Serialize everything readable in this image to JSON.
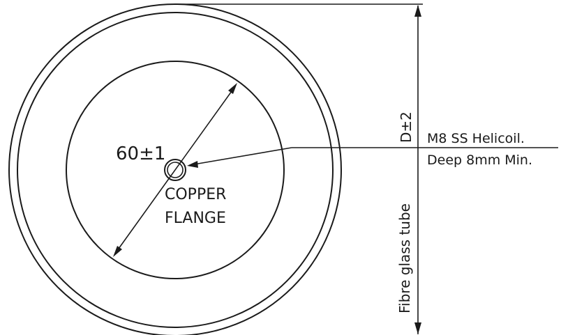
{
  "diagram": {
    "inner_diameter_label": "60±1",
    "flange_label_line1": "COPPER",
    "flange_label_line2": "FLANGE",
    "outer_dimension_label": "D±2",
    "tube_label": "Fibre glass tube",
    "helicoil_line1": "M8 SS Helicoil.",
    "helicoil_line2": "Deep 8mm Min."
  }
}
